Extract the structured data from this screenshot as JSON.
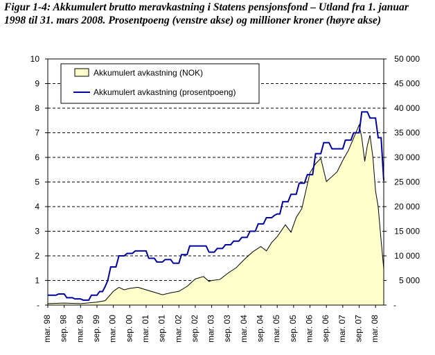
{
  "title": "Figur 1-4: Akkumulert brutto meravkastning i Statens pensjonsfond – Utland fra 1. januar 1998 til 31. mars 2008. Prosentpoeng (venstre akse) og millioner kroner (høyre akse)",
  "chart_data": {
    "type": "line",
    "title": "Figur 1-4: Akkumulert brutto meravkastning i Statens pensjonsfond – Utland fra 1. januar 1998 til 31. mars 2008. Prosentpoeng (venstre akse) og millioner kroner (høyre akse)",
    "xlabel": "",
    "ylabel_left": "",
    "ylabel_right": "",
    "grid": "horizontal dashed",
    "legend_position": "top-left",
    "x_tick_labels": [
      "mar. 98",
      "sep. 98",
      "mar. 99",
      "sep. 99",
      "mar. 00",
      "sep. 00",
      "mar. 01",
      "sep. 01",
      "mar. 02",
      "sep. 02",
      "mar. 03",
      "sep. 03",
      "mar. 04",
      "sep. 04",
      "mar. 05",
      "sep. 05",
      "mar. 06",
      "sep. 06",
      "mar. 07",
      "sep. 07",
      "mar. 08"
    ],
    "y_left": {
      "lim": [
        0,
        10
      ],
      "ticks": [
        "-",
        "1",
        "2",
        "3",
        "4",
        "5",
        "6",
        "7",
        "8",
        "9",
        "10"
      ]
    },
    "y_right": {
      "lim": [
        0,
        50000
      ],
      "ticks": [
        "-",
        "5 000",
        "10 000",
        "15 000",
        "20 000",
        "25 000",
        "30 000",
        "35 000",
        "40 000",
        "45 000",
        "50 000"
      ]
    },
    "series": [
      {
        "name": "Akkumulert avkastning (NOK)",
        "kind": "area",
        "axis": "right",
        "fill": "#FFFFCC",
        "stroke": "#000000",
        "points": [
          [
            1998.0,
            300
          ],
          [
            1998.5,
            400
          ],
          [
            1999.0,
            300
          ],
          [
            1999.5,
            600
          ],
          [
            1999.75,
            900
          ],
          [
            2000.0,
            2800
          ],
          [
            2000.17,
            3600
          ],
          [
            2000.33,
            3100
          ],
          [
            2000.5,
            3400
          ],
          [
            2000.75,
            3600
          ],
          [
            2001.0,
            3100
          ],
          [
            2001.25,
            2600
          ],
          [
            2001.5,
            2100
          ],
          [
            2001.75,
            2500
          ],
          [
            2002.0,
            2800
          ],
          [
            2002.25,
            3800
          ],
          [
            2002.5,
            5300
          ],
          [
            2002.75,
            5800
          ],
          [
            2002.92,
            4800
          ],
          [
            2003.0,
            5000
          ],
          [
            2003.25,
            5200
          ],
          [
            2003.5,
            6500
          ],
          [
            2003.75,
            7600
          ],
          [
            2004.0,
            9300
          ],
          [
            2004.25,
            10800
          ],
          [
            2004.5,
            11900
          ],
          [
            2004.67,
            11000
          ],
          [
            2004.83,
            12700
          ],
          [
            2005.0,
            13900
          ],
          [
            2005.25,
            16300
          ],
          [
            2005.42,
            14800
          ],
          [
            2005.58,
            17800
          ],
          [
            2005.75,
            19600
          ],
          [
            2006.0,
            26900
          ],
          [
            2006.17,
            28700
          ],
          [
            2006.33,
            29800
          ],
          [
            2006.5,
            25100
          ],
          [
            2006.67,
            26100
          ],
          [
            2006.83,
            27100
          ],
          [
            2007.0,
            29400
          ],
          [
            2007.17,
            31400
          ],
          [
            2007.33,
            33900
          ],
          [
            2007.5,
            36600
          ],
          [
            2007.58,
            34000
          ],
          [
            2007.67,
            29200
          ],
          [
            2007.75,
            32400
          ],
          [
            2007.83,
            34500
          ],
          [
            2007.92,
            30000
          ],
          [
            2008.0,
            23200
          ],
          [
            2008.08,
            20000
          ],
          [
            2008.17,
            13100
          ],
          [
            2008.25,
            7400
          ]
        ]
      },
      {
        "name": "Akkumulert avkastning (prosentpoeng)",
        "kind": "line",
        "axis": "left",
        "color": "#0000A0",
        "points": [
          [
            1998.0,
            0.4
          ],
          [
            1998.25,
            0.4
          ],
          [
            1998.33,
            0.45
          ],
          [
            1998.5,
            0.45
          ],
          [
            1998.58,
            0.3
          ],
          [
            1998.75,
            0.3
          ],
          [
            1998.83,
            0.25
          ],
          [
            1999.0,
            0.25
          ],
          [
            1999.08,
            0.2
          ],
          [
            1999.25,
            0.2
          ],
          [
            1999.33,
            0.4
          ],
          [
            1999.5,
            0.4
          ],
          [
            1999.58,
            0.55
          ],
          [
            1999.67,
            0.55
          ],
          [
            1999.75,
            0.75
          ],
          [
            1999.83,
            1.0
          ],
          [
            1999.92,
            1.55
          ],
          [
            2000.08,
            1.55
          ],
          [
            2000.17,
            2.0
          ],
          [
            2000.33,
            2.0
          ],
          [
            2000.42,
            2.1
          ],
          [
            2000.58,
            2.1
          ],
          [
            2000.67,
            2.2
          ],
          [
            2001.0,
            2.2
          ],
          [
            2001.08,
            1.9
          ],
          [
            2001.25,
            1.9
          ],
          [
            2001.33,
            1.75
          ],
          [
            2001.5,
            1.75
          ],
          [
            2001.58,
            1.85
          ],
          [
            2001.75,
            1.85
          ],
          [
            2001.83,
            1.7
          ],
          [
            2002.0,
            1.7
          ],
          [
            2002.08,
            2.05
          ],
          [
            2002.25,
            2.05
          ],
          [
            2002.33,
            2.4
          ],
          [
            2002.83,
            2.4
          ],
          [
            2002.92,
            2.15
          ],
          [
            2003.08,
            2.15
          ],
          [
            2003.17,
            2.3
          ],
          [
            2003.33,
            2.3
          ],
          [
            2003.42,
            2.45
          ],
          [
            2003.58,
            2.45
          ],
          [
            2003.67,
            2.6
          ],
          [
            2003.83,
            2.6
          ],
          [
            2003.92,
            2.75
          ],
          [
            2004.08,
            2.75
          ],
          [
            2004.17,
            3.0
          ],
          [
            2004.33,
            3.0
          ],
          [
            2004.42,
            3.3
          ],
          [
            2004.58,
            3.3
          ],
          [
            2004.67,
            3.55
          ],
          [
            2004.83,
            3.55
          ],
          [
            2004.92,
            3.65
          ],
          [
            2005.0,
            3.7
          ],
          [
            2005.08,
            3.7
          ],
          [
            2005.17,
            4.2
          ],
          [
            2005.33,
            4.2
          ],
          [
            2005.42,
            4.5
          ],
          [
            2005.58,
            4.5
          ],
          [
            2005.67,
            4.95
          ],
          [
            2005.83,
            4.95
          ],
          [
            2005.92,
            5.3
          ],
          [
            2006.08,
            5.3
          ],
          [
            2006.17,
            6.15
          ],
          [
            2006.33,
            6.15
          ],
          [
            2006.42,
            6.6
          ],
          [
            2006.58,
            6.6
          ],
          [
            2006.67,
            6.35
          ],
          [
            2007.0,
            6.35
          ],
          [
            2007.08,
            6.7
          ],
          [
            2007.25,
            6.7
          ],
          [
            2007.33,
            7.0
          ],
          [
            2007.5,
            7.0
          ],
          [
            2007.58,
            7.85
          ],
          [
            2007.75,
            7.85
          ],
          [
            2007.83,
            7.6
          ],
          [
            2008.0,
            7.6
          ],
          [
            2008.08,
            6.8
          ],
          [
            2008.17,
            6.8
          ],
          [
            2008.25,
            5.05
          ]
        ]
      }
    ]
  }
}
